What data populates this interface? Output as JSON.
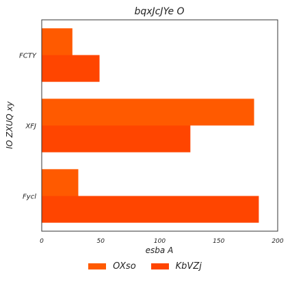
{
  "chart_data": {
    "type": "bar",
    "orientation": "horizontal",
    "title": "bqxJcJYe O",
    "xlabel": "esba A",
    "ylabel": "IO  ZXUQ xy",
    "categories": [
      "Fycl",
      "XFJ",
      "FCTY"
    ],
    "xlim": [
      0,
      200
    ],
    "xticks": [
      0,
      50,
      100,
      150,
      200
    ],
    "grid": false,
    "legend_position": "bottom-center",
    "series": [
      {
        "name": "OXso",
        "color": "#ff5a00",
        "values": [
          31,
          180,
          26
        ]
      },
      {
        "name": "KbVZj",
        "color": "#ff4500",
        "values": [
          184,
          126,
          49
        ]
      }
    ]
  }
}
